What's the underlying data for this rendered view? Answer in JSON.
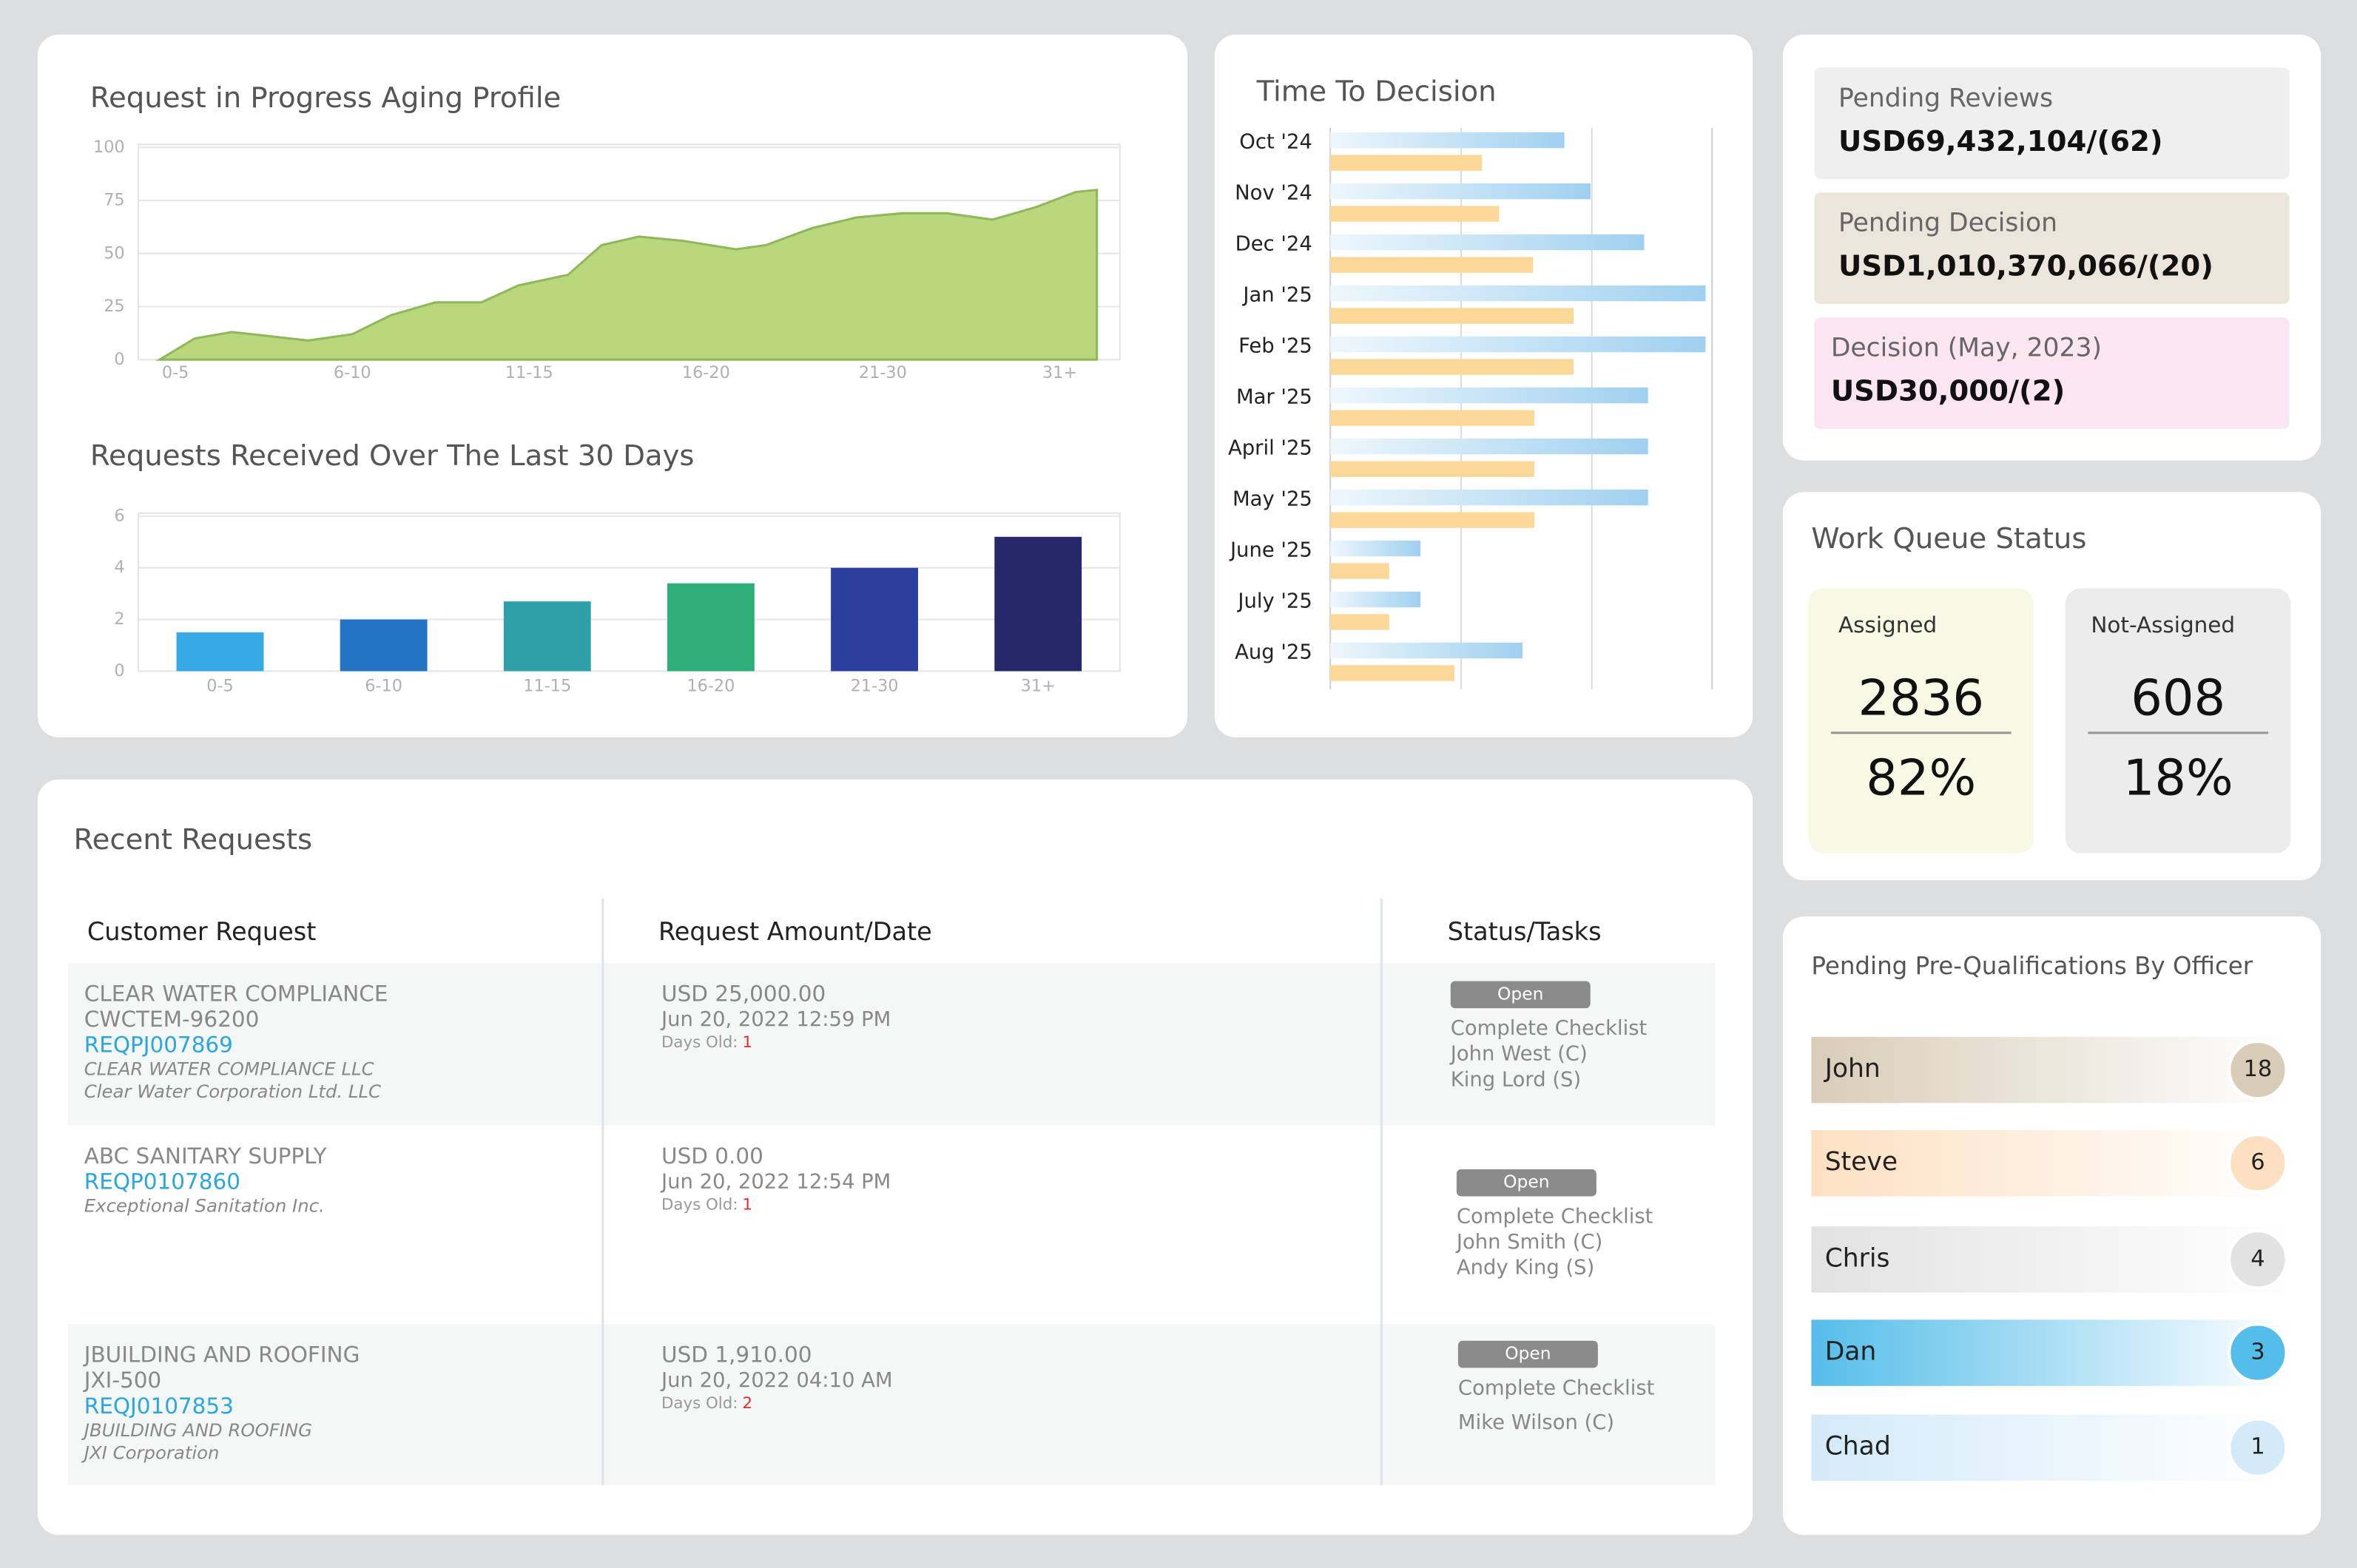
{
  "chart_data": [
    {
      "type": "area",
      "title": "Request in Progress Aging Profile",
      "color": "#b9d77d",
      "line_color": "#8fb85a",
      "x": [
        -0.09,
        0.11,
        0.32,
        0.54,
        0.75,
        1.0,
        1.22,
        1.47,
        1.73,
        1.94,
        2.22,
        2.41,
        2.62,
        2.87,
        3.17,
        3.34,
        3.6,
        3.85,
        4.11,
        4.36,
        4.62,
        4.87,
        5.09,
        5.21
      ],
      "values": [
        0,
        10,
        13,
        11,
        9,
        12,
        21,
        27,
        27,
        35,
        40,
        54,
        58,
        56,
        52,
        54,
        62,
        67,
        69,
        69,
        66,
        72,
        79,
        80
      ],
      "xlim": [
        -0.21,
        5.34
      ],
      "xticks": [
        {
          "value": 0,
          "label": "0-5"
        },
        {
          "value": 1,
          "label": "6-10"
        },
        {
          "value": 2,
          "label": "11-15"
        },
        {
          "value": 3,
          "label": "16-20"
        },
        {
          "value": 4,
          "label": "21-30"
        },
        {
          "value": 5,
          "label": "31+"
        }
      ],
      "ylim": [
        0,
        100
      ],
      "yticks": [
        0,
        25,
        50,
        75,
        100
      ],
      "grid": true
    },
    {
      "type": "bar",
      "title": "Requests Received Over The Last 30 Days",
      "categories": [
        "0-5",
        "6-10",
        "11-15",
        "16-20",
        "21-30",
        "31+"
      ],
      "values": [
        1.5,
        2.0,
        2.7,
        3.4,
        4.0,
        5.2
      ],
      "colors": [
        "#35a8e6",
        "#2175c4",
        "#2fa0a8",
        "#2fae7a",
        "#2b3f9f",
        "#262869"
      ],
      "ylim": [
        0,
        6
      ],
      "yticks": [
        0,
        2,
        4,
        6
      ],
      "grid": true
    },
    {
      "type": "hbar",
      "title": "Time To Decision",
      "categories": [
        "Oct '24",
        "Nov '24",
        "Dec '24",
        "Jan '25",
        "Feb '25",
        "Mar '25",
        "April '25",
        "May '25",
        "June '25",
        "July '25",
        "Aug '25"
      ],
      "series": [
        {
          "color": "#9fd0ef",
          "values": [
            1.79,
            1.99,
            2.4,
            2.87,
            2.87,
            2.43,
            2.43,
            2.43,
            0.69,
            0.69,
            1.47
          ]
        },
        {
          "color": "#fcd898",
          "values": [
            1.16,
            1.29,
            1.55,
            1.86,
            1.86,
            1.56,
            1.56,
            1.56,
            0.45,
            0.45,
            0.95
          ]
        }
      ],
      "xlim": [
        0,
        2.92
      ],
      "gridlines": [
        1,
        2
      ]
    }
  ],
  "cards": [
    {
      "label": "Pending Reviews",
      "value": "USD69,432,104/(62)",
      "color": "#efefef"
    },
    {
      "label": "Pending Decision",
      "value": "USD1,010,370,066/(20)",
      "color": "#ece5dc"
    },
    {
      "label": "Decision (May, 2023)",
      "value": "USD30,000/(2)",
      "color": "#fbe5f0"
    }
  ],
  "work_queue": {
    "title": "Work Queue Status",
    "items": [
      {
        "label": "Assigned",
        "count": "2836",
        "percent": "82%",
        "color": "#f7f9e5"
      },
      {
        "label": "Not-Assigned",
        "count": "608",
        "percent": "18%",
        "color": "#ececec"
      }
    ]
  },
  "officers": {
    "title": "Pending Pre-Qualifications By Officer",
    "items": [
      {
        "name": "John",
        "count": "18",
        "color": "#d9cdb8"
      },
      {
        "name": "Steve",
        "count": "6",
        "color": "#fde0c2"
      },
      {
        "name": "Chris",
        "count": "4",
        "color": "#e2e2e2"
      },
      {
        "name": "Dan",
        "count": "3",
        "color": "#55bdea"
      },
      {
        "name": "Chad",
        "count": "1",
        "color": "#d3eaf9"
      }
    ]
  },
  "table": {
    "title": "Recent Requests",
    "headers": [
      "Customer Request",
      "Request Amount/Date",
      "Status/Tasks"
    ],
    "rows": [
      {
        "customer": {
          "name": "CLEAR WATER COMPLIANCE",
          "codes": [
            "CWCTEM-96200"
          ],
          "request_id": "REQPJ007869",
          "legal_names": [
            "CLEAR WATER COMPLIANCE LLC",
            "Clear Water Corporation Ltd. LLC"
          ]
        },
        "amount": "USD 25,000.00",
        "date": "Jun 20, 2022 12:59 PM",
        "days_label": "Days Old:",
        "days": "1",
        "status": "Open",
        "tasks": [
          "Complete Checklist",
          "John West (C)",
          "King Lord (S)"
        ]
      },
      {
        "customer": {
          "name": "ABC SANITARY SUPPLY",
          "codes": [],
          "request_id": "REQP0107860",
          "legal_names": [
            "Exceptional Sanitation Inc."
          ]
        },
        "amount": "USD 0.00",
        "date": "Jun 20, 2022 12:54 PM",
        "days_label": "Days Old:",
        "days": "1",
        "status": "Open",
        "tasks": [
          "Complete Checklist",
          "John Smith (C)",
          "Andy King (S)"
        ]
      },
      {
        "customer": {
          "name": "JBUILDING AND ROOFING",
          "codes": [
            "JXI-500"
          ],
          "request_id": "REQJ0107853",
          "legal_names": [
            "JBUILDING AND ROOFING",
            "JXI Corporation"
          ]
        },
        "amount": "USD 1,910.00",
        "date": "Jun 20, 2022 04:10 AM",
        "days_label": "Days Old:",
        "days": "2",
        "status": "Open",
        "tasks": [
          "Complete Checklist",
          "Mike Wilson (C)"
        ]
      }
    ]
  }
}
